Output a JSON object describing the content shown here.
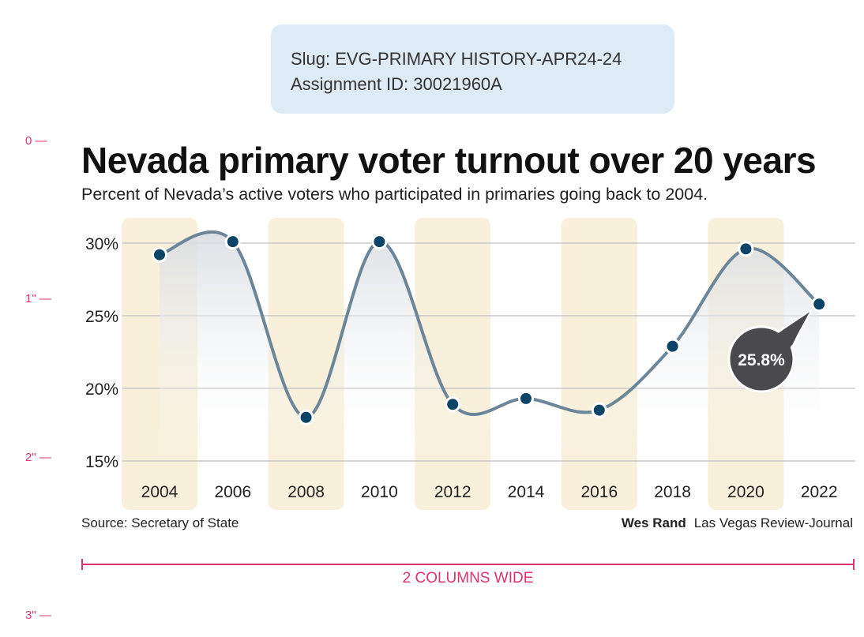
{
  "slug": {
    "line1": "Slug: EVG-PRIMARY HISTORY-APR24-24",
    "line2": "Assignment ID: 30021960A"
  },
  "ruler": [
    "0",
    "1\"",
    "2\"",
    "3\""
  ],
  "footer": {
    "source": "Source: Secretary of State",
    "author": "Wes Rand",
    "publication": "Las Vegas Review-Journal",
    "width_label": "2 COLUMNS WIDE"
  },
  "colors": {
    "line": "#6d8599",
    "point": "#0b4466",
    "band": "#f8f0db",
    "callout": "#4a4a4c",
    "guide": "#e0336b"
  },
  "chart_data": {
    "type": "line",
    "title": "Nevada primary voter turnout over 20 years",
    "subtitle": "Percent of Nevada’s active voters who participated in primaries going back to 2004.",
    "categories": [
      "2004",
      "2006",
      "2008",
      "2010",
      "2012",
      "2014",
      "2016",
      "2018",
      "2020",
      "2022"
    ],
    "values": [
      29.2,
      30.1,
      18.0,
      30.1,
      18.9,
      19.3,
      18.5,
      22.9,
      29.6,
      25.8
    ],
    "ylim": [
      15,
      30
    ],
    "yticks": [
      15,
      20,
      25,
      30
    ],
    "ytick_labels": [
      "15%",
      "20%",
      "25%",
      "30%"
    ],
    "grid": true,
    "smooth": true,
    "highlighted_bands": [
      "2004",
      "2008",
      "2012",
      "2016",
      "2020"
    ],
    "annotation": {
      "category": "2022",
      "text": "25.8%"
    }
  }
}
